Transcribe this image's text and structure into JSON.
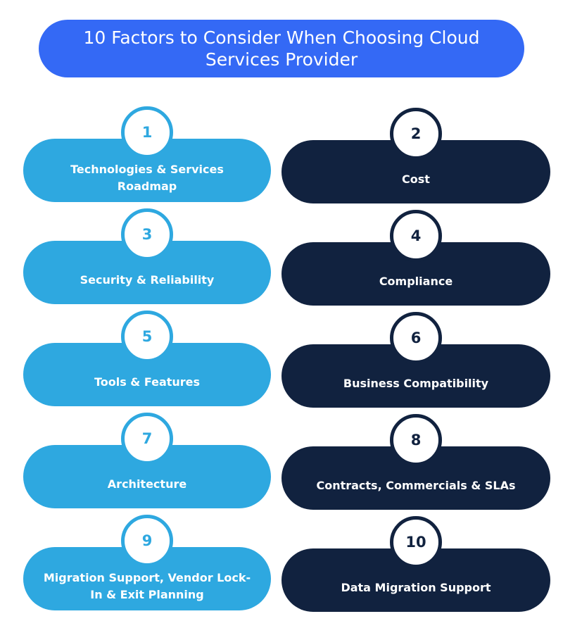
{
  "title": "10 Factors to Consider When Choosing Cloud Services Provider",
  "colors": {
    "title_bar": "#3469f5",
    "light": "#2ea8e0",
    "dark": "#11223f"
  },
  "factors": [
    {
      "number": "1",
      "label": "Technologies & Services Roadmap"
    },
    {
      "number": "2",
      "label": "Cost"
    },
    {
      "number": "3",
      "label": "Security & Reliability"
    },
    {
      "number": "4",
      "label": "Compliance"
    },
    {
      "number": "5",
      "label": "Tools & Features"
    },
    {
      "number": "6",
      "label": "Business Compatibility"
    },
    {
      "number": "7",
      "label": "Architecture"
    },
    {
      "number": "8",
      "label": "Contracts, Commercials & SLAs"
    },
    {
      "number": "9",
      "label": "Migration Support, Vendor Lock-In & Exit Planning"
    },
    {
      "number": "10",
      "label": "Data Migration Support"
    }
  ]
}
